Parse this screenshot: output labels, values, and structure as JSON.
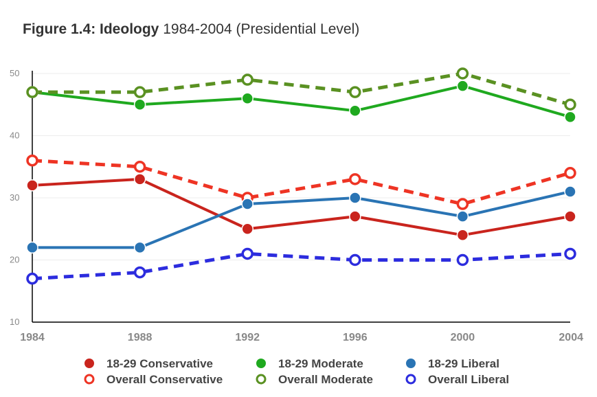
{
  "title": {
    "bold": "Figure 1.4: Ideology",
    "rest": " 1984-2004 (Presidential Level)"
  },
  "chart_data": {
    "type": "line",
    "title": "Figure 1.4: Ideology 1984-2004 (Presidential Level)",
    "categories": [
      "1984",
      "1988",
      "1992",
      "1996",
      "2000",
      "2004"
    ],
    "y_ticks": [
      "10",
      "20",
      "30",
      "40",
      "50"
    ],
    "ylim": [
      10,
      50
    ],
    "grid": true,
    "legend_position": "bottom",
    "series": [
      {
        "name": "18-29 Conservative",
        "values": [
          32,
          33,
          25,
          27,
          24,
          27
        ],
        "color": "#c9241d",
        "dashed": false
      },
      {
        "name": "Overall Conservative",
        "values": [
          36,
          35,
          30,
          33,
          29,
          34
        ],
        "color": "#ee3424",
        "dashed": true
      },
      {
        "name": "18-29 Moderate",
        "values": [
          47,
          45,
          46,
          44,
          48,
          43
        ],
        "color": "#1fa91f",
        "dashed": false
      },
      {
        "name": "Overall Moderate",
        "values": [
          47,
          47,
          49,
          47,
          50,
          45
        ],
        "color": "#5a9122",
        "dashed": true
      },
      {
        "name": "18-29 Liberal",
        "values": [
          22,
          22,
          29,
          30,
          27,
          31
        ],
        "color": "#2a74b4",
        "dashed": false
      },
      {
        "name": "Overall Liberal",
        "values": [
          17,
          18,
          21,
          20,
          20,
          21
        ],
        "color": "#2c2cde",
        "dashed": true
      }
    ],
    "legend_rows": [
      [
        "18-29 Conservative",
        "18-29 Moderate",
        "18-29 Liberal"
      ],
      [
        "Overall Conservative",
        "Overall Moderate",
        "Overall Liberal"
      ]
    ]
  }
}
